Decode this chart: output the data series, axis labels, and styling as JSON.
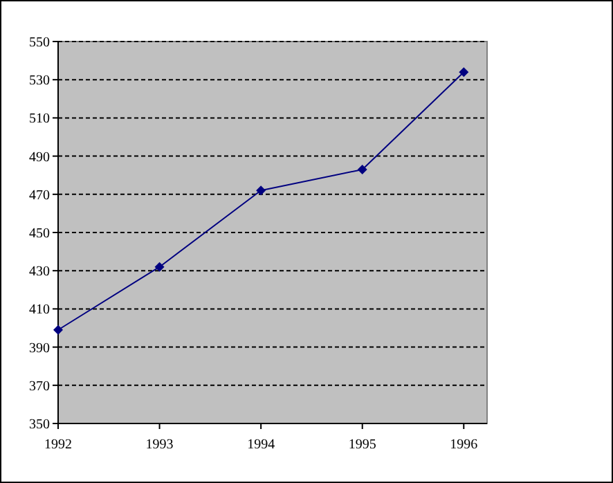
{
  "chart_data": {
    "type": "line",
    "x": [
      1992,
      1993,
      1994,
      1995,
      1996
    ],
    "series": [
      {
        "color": "#000080",
        "values": [
          399,
          432,
          472,
          483,
          534
        ]
      }
    ],
    "xlim": [
      1992,
      1996.23
    ],
    "xticks": [
      1992,
      1993,
      1994,
      1995,
      1996
    ],
    "ylim": [
      350,
      550
    ],
    "yticks": [
      350,
      370,
      390,
      410,
      430,
      450,
      470,
      490,
      510,
      530,
      550
    ],
    "grid": "y",
    "marker": "diamond",
    "line_style": "solid"
  }
}
